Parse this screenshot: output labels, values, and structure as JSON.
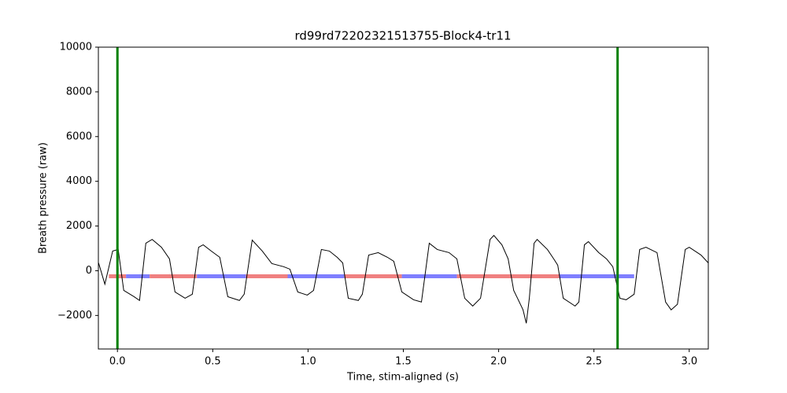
{
  "chart_data": {
    "type": "line",
    "title": "rd99rd72202321513755-Block4-tr11",
    "xlabel": "Time, stim-aligned (s)",
    "ylabel": "Breath pressure (raw)",
    "xlim": [
      -0.1,
      3.1
    ],
    "ylim": [
      -3500,
      10000
    ],
    "xticks": [
      {
        "value": 0,
        "label": "0.0"
      },
      0.5,
      {
        "value": 1,
        "label": "1.0"
      },
      1.5,
      {
        "value": 2,
        "label": "2.0"
      },
      2.5,
      {
        "value": 3,
        "label": "3.0"
      }
    ],
    "yticks": [
      {
        "value": -2000,
        "label": "−2000"
      },
      0,
      2000,
      4000,
      6000,
      8000,
      10000
    ],
    "x": [
      -0.099,
      -0.066,
      -0.025,
      0.004,
      0.033,
      0.087,
      0.116,
      0.149,
      0.182,
      0.231,
      0.273,
      0.302,
      0.355,
      0.393,
      0.426,
      0.45,
      0.492,
      0.537,
      0.579,
      0.64,
      0.665,
      0.707,
      0.76,
      0.81,
      0.872,
      0.905,
      0.946,
      0.996,
      1.029,
      1.07,
      1.112,
      1.153,
      1.182,
      1.211,
      1.264,
      1.285,
      1.318,
      1.368,
      1.417,
      1.45,
      1.492,
      1.554,
      1.595,
      1.636,
      1.678,
      1.74,
      1.781,
      1.822,
      1.864,
      1.905,
      1.955,
      1.975,
      2.017,
      2.05,
      2.079,
      2.099,
      2.128,
      2.145,
      2.161,
      2.186,
      2.202,
      2.256,
      2.289,
      2.31,
      2.339,
      2.401,
      2.421,
      2.45,
      2.471,
      2.525,
      2.566,
      2.599,
      2.636,
      2.669,
      2.711,
      2.74,
      2.773,
      2.831,
      2.876,
      2.905,
      2.938,
      2.979,
      3.0,
      3.062,
      3.1
    ],
    "series": [
      {
        "color": "#000000",
        "values": [
          350,
          -600,
          880,
          950,
          -880,
          -1160,
          -1330,
          1230,
          1400,
          1050,
          530,
          -950,
          -1230,
          -1050,
          1050,
          1160,
          880,
          600,
          -1160,
          -1330,
          -1050,
          1370,
          880,
          320,
          180,
          70,
          -950,
          -1090,
          -880,
          950,
          880,
          600,
          350,
          -1230,
          -1330,
          -1050,
          700,
          810,
          600,
          420,
          -950,
          -1300,
          -1400,
          1230,
          950,
          810,
          530,
          -1230,
          -1580,
          -1230,
          1400,
          1580,
          1160,
          530,
          -880,
          -1230,
          -1750,
          -2350,
          -1230,
          1230,
          1400,
          950,
          530,
          250,
          -1230,
          -1580,
          -1400,
          1160,
          1300,
          810,
          530,
          180,
          -1230,
          -1300,
          -1050,
          950,
          1050,
          810,
          -1400,
          -1750,
          -1500,
          950,
          1050,
          700,
          350
        ]
      }
    ],
    "vlines": [
      {
        "x": 0,
        "color": "#008000"
      },
      {
        "x": 2.624,
        "color": "#008000"
      }
    ],
    "hsegments": [
      {
        "y": -250,
        "start": -0.045,
        "end": 0.045,
        "color": "#f08080"
      },
      {
        "y": -250,
        "start": 0.045,
        "end": 0.169,
        "color": "#7f7fff"
      },
      {
        "y": -250,
        "start": 0.169,
        "end": 0.417,
        "color": "#f08080"
      },
      {
        "y": -250,
        "start": 0.417,
        "end": 0.674,
        "color": "#7f7fff"
      },
      {
        "y": -250,
        "start": 0.674,
        "end": 0.893,
        "color": "#f08080"
      },
      {
        "y": -250,
        "start": 0.893,
        "end": 1.19,
        "color": "#7f7fff"
      },
      {
        "y": -250,
        "start": 1.19,
        "end": 1.492,
        "color": "#f08080"
      },
      {
        "y": -250,
        "start": 1.492,
        "end": 1.781,
        "color": "#7f7fff"
      },
      {
        "y": -250,
        "start": 1.781,
        "end": 2.318,
        "color": "#f08080"
      },
      {
        "y": -250,
        "start": 2.318,
        "end": 2.711,
        "color": "#7f7fff"
      }
    ]
  }
}
